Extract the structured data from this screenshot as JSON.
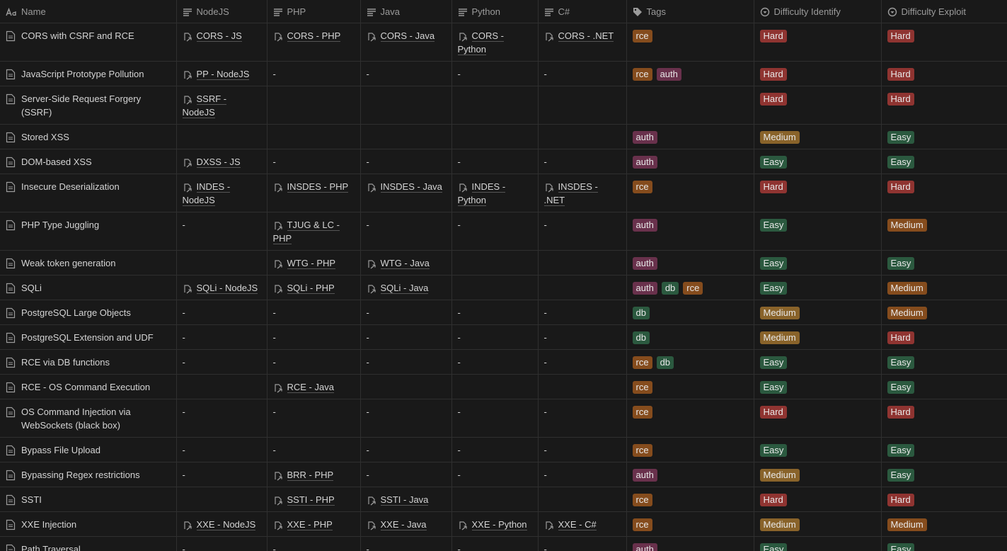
{
  "table": {
    "columns": [
      "Name",
      "NodeJS",
      "PHP",
      "Java",
      "Python",
      "C#",
      "Tags",
      "Difficulty Identify",
      "Difficulty Exploit"
    ],
    "option_colors": {
      "tags": {
        "rce": "#854c1d",
        "auth": "#69314c",
        "db": "#2b593f"
      },
      "identify": {
        "Hard": "#8f3431",
        "Medium": "#89632a",
        "Easy": "#2b593f"
      },
      "exploit": {
        "Hard": "#8f3431",
        "Medium": "#854c1d",
        "Easy": "#2b593f"
      }
    },
    "rows": [
      {
        "name": "CORS with CSRF and RCE",
        "links": [
          "CORS - JS",
          "CORS - PHP",
          "CORS - Java",
          "CORS - Python",
          "CORS - .NET"
        ],
        "tags": [
          "rce"
        ],
        "identify": "Hard",
        "exploit": "Hard"
      },
      {
        "name": "JavaScript Prototype Pollution",
        "links": [
          "PP - NodeJS",
          "-",
          "-",
          "-",
          "-"
        ],
        "tags": [
          "rce",
          "auth"
        ],
        "identify": "Hard",
        "exploit": "Hard"
      },
      {
        "name": "Server-Side Request Forgery (SSRF)",
        "links": [
          "SSRF - NodeJS",
          null,
          null,
          null,
          null
        ],
        "tags": [],
        "identify": "Hard",
        "exploit": "Hard"
      },
      {
        "name": "Stored XSS",
        "links": [
          null,
          null,
          null,
          null,
          null
        ],
        "tags": [
          "auth"
        ],
        "identify": "Medium",
        "exploit": "Easy"
      },
      {
        "name": "DOM-based XSS",
        "links": [
          "DXSS - JS",
          "-",
          "-",
          "-",
          "-"
        ],
        "tags": [
          "auth"
        ],
        "identify": "Easy",
        "exploit": "Easy"
      },
      {
        "name": "Insecure Deserialization",
        "links": [
          "INDES - NodeJS",
          "INSDES - PHP",
          "INSDES - Java",
          "INDES - Python",
          "INSDES - .NET"
        ],
        "tags": [
          "rce"
        ],
        "identify": "Hard",
        "exploit": "Hard"
      },
      {
        "name": "PHP Type Juggling",
        "links": [
          "-",
          "TJUG & LC - PHP",
          "-",
          "-",
          "-"
        ],
        "tags": [
          "auth"
        ],
        "identify": "Easy",
        "exploit": "Medium"
      },
      {
        "name": "Weak token generation",
        "links": [
          null,
          "WTG - PHP",
          "WTG - Java",
          null,
          null
        ],
        "tags": [
          "auth"
        ],
        "identify": "Easy",
        "exploit": "Easy"
      },
      {
        "name": "SQLi",
        "links": [
          "SQLi - NodeJS",
          "SQLi - PHP",
          "SQLi - Java",
          null,
          null
        ],
        "tags": [
          "auth",
          "db",
          "rce"
        ],
        "identify": "Easy",
        "exploit": "Medium"
      },
      {
        "name": "PostgreSQL Large Objects",
        "links": [
          "-",
          "-",
          "-",
          "-",
          "-"
        ],
        "tags": [
          "db"
        ],
        "identify": "Medium",
        "exploit": "Medium"
      },
      {
        "name": "PostgreSQL Extension and UDF",
        "links": [
          "-",
          "-",
          "-",
          "-",
          "-"
        ],
        "tags": [
          "db"
        ],
        "identify": "Medium",
        "exploit": "Hard"
      },
      {
        "name": "RCE via DB functions",
        "links": [
          "-",
          "-",
          "-",
          "-",
          "-"
        ],
        "tags": [
          "rce",
          "db"
        ],
        "identify": "Easy",
        "exploit": "Easy"
      },
      {
        "name": "RCE - OS Command Execution",
        "links": [
          null,
          "RCE - Java",
          null,
          null,
          null
        ],
        "tags": [
          "rce"
        ],
        "identify": "Easy",
        "exploit": "Easy"
      },
      {
        "name": "OS Command Injection via WebSockets (black box)",
        "links": [
          "-",
          "-",
          "-",
          "-",
          "-"
        ],
        "tags": [
          "rce"
        ],
        "identify": "Hard",
        "exploit": "Hard"
      },
      {
        "name": "Bypass File Upload",
        "links": [
          "-",
          "-",
          "-",
          "-",
          "-"
        ],
        "tags": [
          "rce"
        ],
        "identify": "Easy",
        "exploit": "Easy"
      },
      {
        "name": "Bypassing Regex restrictions",
        "links": [
          "-",
          "BRR - PHP",
          "-",
          "-",
          "-"
        ],
        "tags": [
          "auth"
        ],
        "identify": "Medium",
        "exploit": "Easy"
      },
      {
        "name": "SSTI",
        "links": [
          null,
          "SSTI - PHP",
          "SSTI - Java",
          null,
          null
        ],
        "tags": [
          "rce"
        ],
        "identify": "Hard",
        "exploit": "Hard"
      },
      {
        "name": "XXE Injection",
        "links": [
          "XXE - NodeJS",
          "XXE - PHP",
          "XXE - Java",
          "XXE - Python",
          "XXE - C#"
        ],
        "tags": [
          "rce"
        ],
        "identify": "Medium",
        "exploit": "Medium"
      },
      {
        "name": "Path Traversal",
        "links": [
          "-",
          "-",
          "-",
          "-",
          "-"
        ],
        "tags": [
          "auth"
        ],
        "identify": "Easy",
        "exploit": "Easy"
      }
    ]
  }
}
